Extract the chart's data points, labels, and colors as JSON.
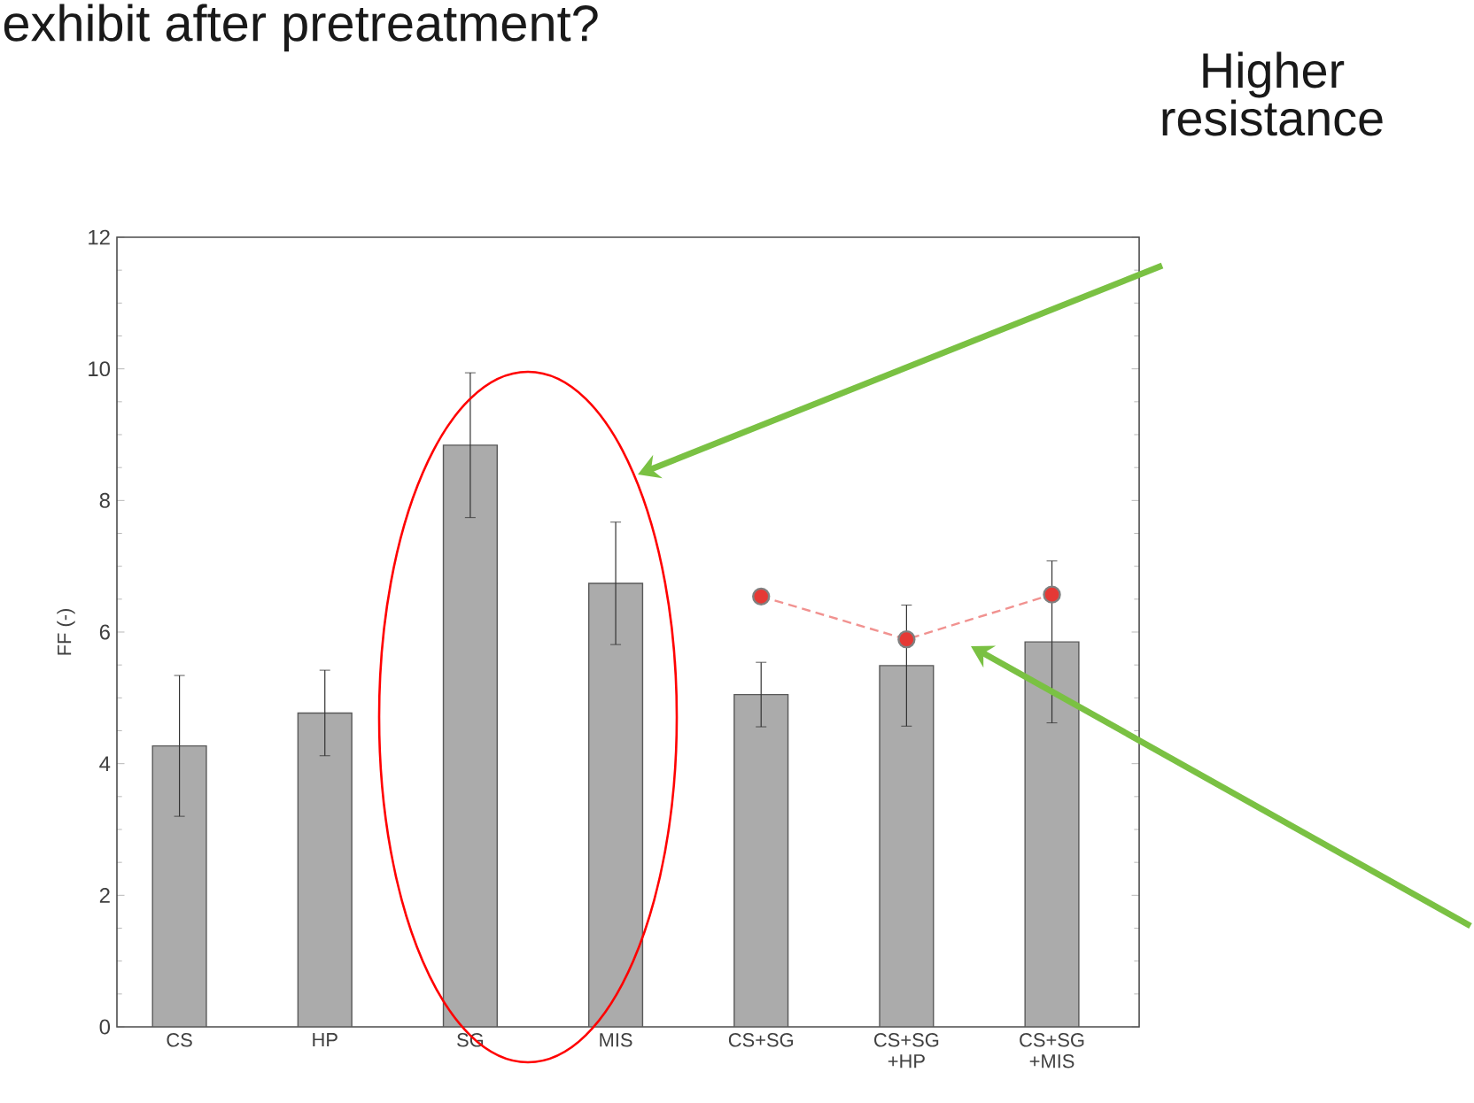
{
  "chart_data": {
    "type": "bar",
    "title": "exhibit after pretreatment?",
    "ylabel": "FF (-)",
    "categories": [
      "CS",
      "HP",
      "SG",
      "MIS",
      "CS+SG",
      "CS+SG +HP",
      "CS+SG +MIS"
    ],
    "series": [
      {
        "color": "#ababab",
        "values": [
          4.27,
          4.77,
          8.84,
          6.74,
          5.05,
          5.49,
          5.85
        ],
        "errors": [
          1.07,
          0.65,
          1.1,
          0.93,
          0.49,
          0.92,
          1.23
        ]
      },
      {
        "type": "line",
        "color": "#e53935",
        "values": [
          null,
          null,
          null,
          null,
          6.54,
          5.89,
          6.57
        ],
        "marker": "circle",
        "line_style": "dashed"
      }
    ],
    "ylim": [
      0,
      12
    ],
    "yticks": [
      0,
      2,
      4,
      6,
      8,
      10,
      12
    ],
    "annotations": [
      "Higher resistance"
    ]
  }
}
